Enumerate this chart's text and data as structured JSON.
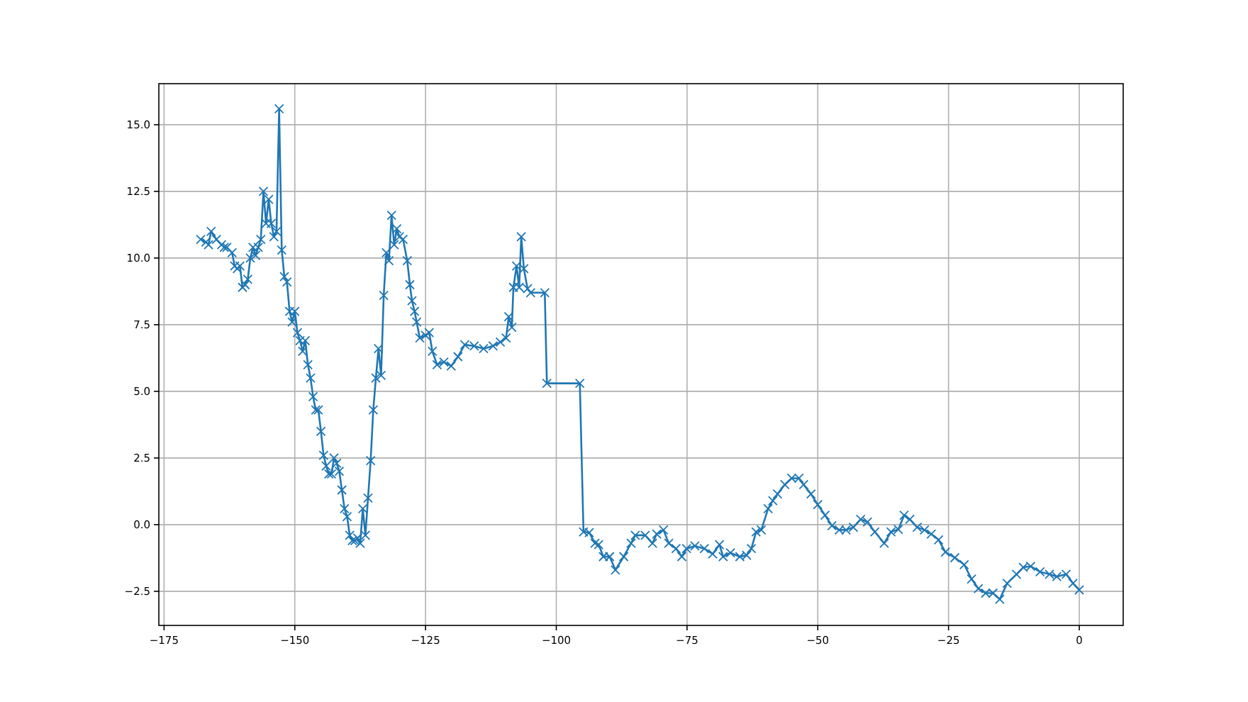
{
  "chart_data": {
    "type": "line",
    "marker": "cross",
    "line_style": "solid",
    "grid": true,
    "xlim": [
      -176,
      8.4
    ],
    "ylim": [
      -3.78,
      16.54
    ],
    "xticks": [
      {
        "value": -175,
        "label": "−175"
      },
      {
        "value": -150,
        "label": "−150"
      },
      {
        "value": -125,
        "label": "−125"
      },
      {
        "value": -100,
        "label": "−100"
      },
      {
        "value": -75,
        "label": "−75"
      },
      {
        "value": -50,
        "label": "−50"
      },
      {
        "value": -25,
        "label": "−25"
      },
      {
        "value": 0,
        "label": "0"
      }
    ],
    "yticks": [
      {
        "value": -2.5,
        "label": "−2.5"
      },
      {
        "value": 0,
        "label": "0.0"
      },
      {
        "value": 2.5,
        "label": "2.5"
      },
      {
        "value": 5,
        "label": "5.0"
      },
      {
        "value": 7.5,
        "label": "7.5"
      },
      {
        "value": 10,
        "label": "10.0"
      },
      {
        "value": 12.5,
        "label": "12.5"
      },
      {
        "value": 15,
        "label": "15.0"
      }
    ],
    "series": [
      {
        "color": "#1f77b4",
        "x": [
          -168,
          -167,
          -166.5,
          -166,
          -165,
          -164,
          -163.5,
          -163,
          -162,
          -161.5,
          -161,
          -160.5,
          -160,
          -159.5,
          -159,
          -158.5,
          -158,
          -157.5,
          -157,
          -156.5,
          -156,
          -155.5,
          -155,
          -154.5,
          -154,
          -153.5,
          -153,
          -152.5,
          -152,
          -151.5,
          -151,
          -150.5,
          -150,
          -149.5,
          -149,
          -148.5,
          -148,
          -147.5,
          -147,
          -146.5,
          -146,
          -145.5,
          -145,
          -144.5,
          -144,
          -143.5,
          -143,
          -142.5,
          -142,
          -141.5,
          -141,
          -140.5,
          -140,
          -139.5,
          -139,
          -138.5,
          -138,
          -137.5,
          -137,
          -136.5,
          -136,
          -135.5,
          -135,
          -134.5,
          -134,
          -133.5,
          -133,
          -132.5,
          -132,
          -131.5,
          -131,
          -130.5,
          -130,
          -129.3,
          -128.5,
          -128,
          -127.6,
          -127.1,
          -126.7,
          -126.1,
          -125,
          -124.3,
          -123.7,
          -122.8,
          -121.5,
          -120.1,
          -118.8,
          -117.5,
          -115.7,
          -113.9,
          -112.1,
          -110.7,
          -109.6,
          -109.1,
          -108.5,
          -108.2,
          -107.6,
          -107.1,
          -106.7,
          -106.2,
          -105.5,
          -104.9,
          -102.2,
          -101.8,
          -95.5,
          -94.8,
          -93.7,
          -92.6,
          -91.9,
          -91,
          -89.8,
          -88.7,
          -87.1,
          -85.7,
          -84.9,
          -83,
          -81.6,
          -80.8,
          -79.5,
          -78.5,
          -77.1,
          -76,
          -75.1,
          -73.5,
          -71.7,
          -70.1,
          -68.8,
          -68.1,
          -66.7,
          -64.9,
          -63.6,
          -62.7,
          -61.8,
          -60.8,
          -59.5,
          -58.6,
          -57.7,
          -56.3,
          -55,
          -53.6,
          -52.7,
          -51.3,
          -50,
          -48.6,
          -47.3,
          -45.9,
          -44.6,
          -43.2,
          -41.8,
          -40.5,
          -39.1,
          -37.3,
          -36,
          -34.6,
          -33.5,
          -32.4,
          -31,
          -29.6,
          -28.3,
          -26.9,
          -25.6,
          -23.8,
          -22,
          -20.6,
          -19.3,
          -17.9,
          -16.5,
          -15.2,
          -13.8,
          -12,
          -10.7,
          -9.3,
          -7.5,
          -5.7,
          -4.3,
          -2.5,
          -1.2,
          0
        ],
        "values": [
          10.7,
          10.6,
          10.5,
          11.0,
          10.7,
          10.5,
          10.4,
          10.4,
          10.2,
          9.7,
          9.6,
          9.7,
          8.9,
          9.0,
          9.2,
          10.0,
          10.4,
          10.1,
          10.4,
          10.7,
          12.5,
          11.3,
          12.2,
          11.3,
          10.8,
          11.0,
          15.6,
          10.3,
          9.3,
          9.1,
          8.0,
          7.6,
          8.0,
          7.2,
          6.9,
          6.5,
          6.9,
          6.0,
          5.5,
          4.8,
          4.3,
          4.3,
          3.5,
          2.6,
          2.2,
          1.9,
          1.9,
          2.5,
          2.3,
          2.0,
          1.3,
          0.6,
          0.3,
          -0.4,
          -0.6,
          -0.6,
          -0.5,
          -0.7,
          0.6,
          -0.4,
          1.0,
          2.4,
          4.3,
          5.5,
          6.6,
          5.6,
          8.6,
          10.2,
          9.9,
          11.6,
          10.5,
          11.1,
          10.8,
          10.7,
          9.9,
          9.0,
          8.4,
          8.0,
          7.6,
          7.0,
          7.1,
          7.2,
          6.5,
          6.0,
          6.1,
          5.95,
          6.3,
          6.75,
          6.7,
          6.6,
          6.7,
          6.85,
          7.0,
          7.8,
          7.4,
          8.9,
          9.7,
          8.9,
          10.8,
          9.6,
          8.85,
          8.7,
          8.7,
          5.3,
          5.3,
          -0.27,
          -0.3,
          -0.7,
          -0.75,
          -1.2,
          -1.2,
          -1.7,
          -1.2,
          -0.7,
          -0.4,
          -0.4,
          -0.7,
          -0.35,
          -0.2,
          -0.7,
          -0.9,
          -1.2,
          -0.9,
          -0.8,
          -0.9,
          -1.1,
          -0.75,
          -1.2,
          -1.06,
          -1.2,
          -1.15,
          -0.9,
          -0.27,
          -0.2,
          0.6,
          0.9,
          1.15,
          1.5,
          1.74,
          1.74,
          1.5,
          1.15,
          0.75,
          0.35,
          -0.04,
          -0.2,
          -0.2,
          -0.1,
          0.2,
          0.1,
          -0.27,
          -0.7,
          -0.27,
          -0.18,
          0.35,
          0.2,
          -0.1,
          -0.2,
          -0.35,
          -0.57,
          -1.03,
          -1.24,
          -1.5,
          -2.04,
          -2.4,
          -2.57,
          -2.57,
          -2.8,
          -2.2,
          -1.86,
          -1.6,
          -1.56,
          -1.77,
          -1.86,
          -1.95,
          -1.86,
          -2.2,
          -2.45
        ]
      }
    ]
  }
}
